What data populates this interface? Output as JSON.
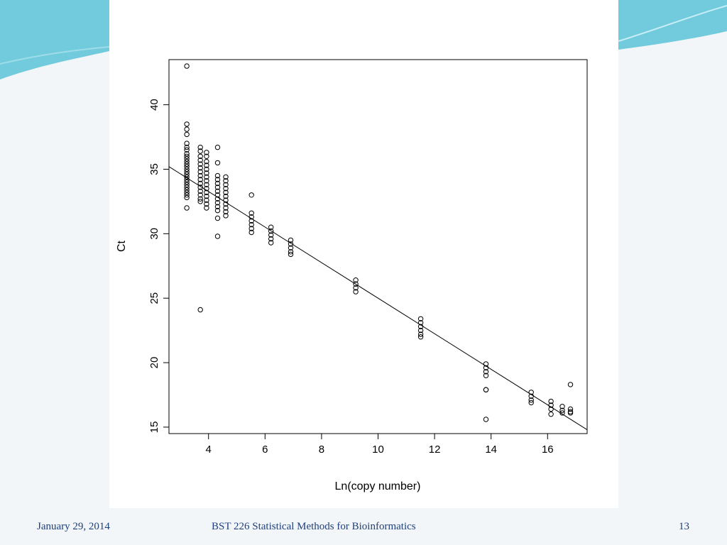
{
  "footer": {
    "date": "January 29, 2014",
    "course": "BST 226 Statistical Methods for Bioinformatics",
    "page_number": "13"
  },
  "colors": {
    "background": "#f2f6f9",
    "accent_teal": "#5bc3d8",
    "footer_text": "#1f3f7a",
    "points": "#000000"
  },
  "chart_data": {
    "type": "scatter",
    "title": "",
    "xlabel": "Ln(copy number)",
    "ylabel": "Ct",
    "xlim": [
      2.6,
      17.4
    ],
    "ylim": [
      14.5,
      43.5
    ],
    "x_ticks": [
      4,
      6,
      8,
      10,
      12,
      14,
      16
    ],
    "y_ticks": [
      15,
      20,
      25,
      30,
      35,
      40
    ],
    "grid": false,
    "fit_line": {
      "x": [
        2.6,
        17.4
      ],
      "y": [
        35.2,
        14.8
      ]
    },
    "series": [
      {
        "groups": [
          {
            "x": 3.23,
            "y": [
              43.0,
              38.5,
              38.1,
              37.7,
              37.0,
              36.7,
              36.5,
              36.2,
              36.0,
              35.8,
              35.6,
              35.4,
              35.2,
              35.0,
              34.8,
              34.6,
              34.4,
              34.2,
              34.0,
              33.8,
              33.6,
              33.4,
              33.2,
              33.0,
              32.8,
              32.0
            ]
          },
          {
            "x": 3.71,
            "y": [
              36.7,
              36.4,
              36.0,
              35.7,
              35.4,
              35.1,
              34.8,
              34.5,
              34.2,
              33.9,
              33.6,
              33.3,
              33.0,
              32.7,
              32.5,
              24.1
            ]
          },
          {
            "x": 3.93,
            "y": [
              36.3,
              36.0,
              35.6,
              35.3,
              35.0,
              34.7,
              34.4,
              34.1,
              33.8,
              33.5,
              33.2,
              32.9,
              32.6,
              32.3,
              32.0
            ]
          },
          {
            "x": 4.32,
            "y": [
              36.7,
              35.5,
              34.5,
              34.2,
              33.9,
              33.6,
              33.3,
              33.0,
              32.7,
              32.4,
              32.1,
              31.8,
              31.2,
              29.8
            ]
          },
          {
            "x": 4.61,
            "y": [
              34.4,
              34.1,
              33.8,
              33.5,
              33.2,
              32.9,
              32.6,
              32.3,
              32.0,
              31.7,
              31.4
            ]
          },
          {
            "x": 5.52,
            "y": [
              33.0,
              31.6,
              31.3,
              31.0,
              30.7,
              30.4,
              30.1
            ]
          },
          {
            "x": 6.21,
            "y": [
              30.5,
              30.2,
              29.9,
              29.6,
              29.3
            ]
          },
          {
            "x": 6.91,
            "y": [
              29.5,
              29.2,
              28.9,
              28.6,
              28.4
            ]
          },
          {
            "x": 9.21,
            "y": [
              26.4,
              26.1,
              25.8,
              25.5
            ]
          },
          {
            "x": 11.51,
            "y": [
              23.4,
              23.1,
              22.8,
              22.5,
              22.2,
              22.0
            ]
          },
          {
            "x": 13.82,
            "y": [
              19.9,
              19.6,
              19.3,
              19.0,
              17.9,
              17.9,
              15.6
            ]
          },
          {
            "x": 15.42,
            "y": [
              17.7,
              17.4,
              17.1,
              16.9
            ]
          },
          {
            "x": 16.12,
            "y": [
              17.0,
              16.7,
              16.4,
              16.0
            ]
          },
          {
            "x": 16.52,
            "y": [
              16.6,
              16.3,
              16.1
            ]
          },
          {
            "x": 16.81,
            "y": [
              18.3,
              16.4,
              16.2,
              16.1
            ]
          }
        ]
      }
    ]
  }
}
